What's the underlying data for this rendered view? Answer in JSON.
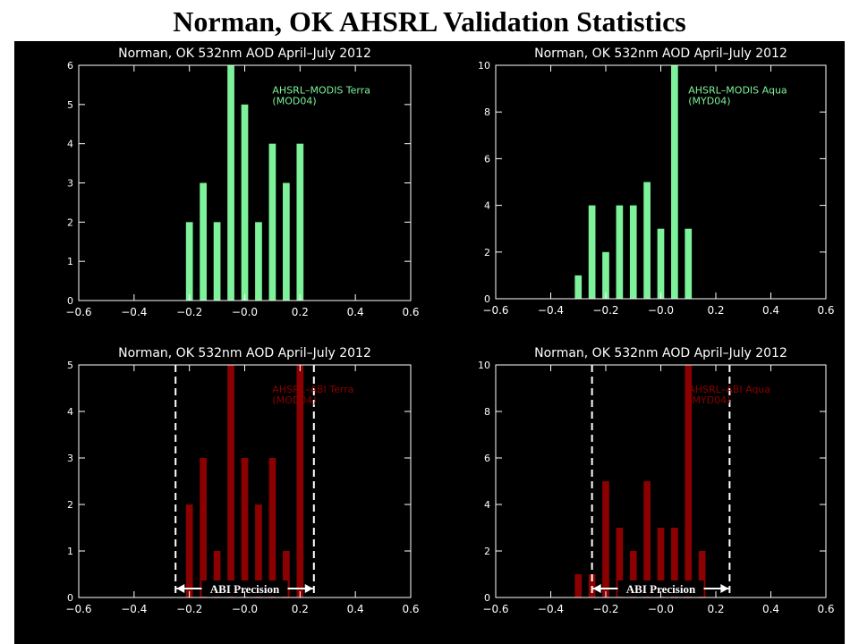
{
  "page": {
    "title": "Norman, OK AHSRL Validation Statistics"
  },
  "colors": {
    "background": "#000000",
    "axes": "#ffffff",
    "modis_bar": "#7df29a",
    "abi_bar": "#8b0000"
  },
  "annotations": {
    "precision_label": "ABI Precision"
  },
  "chart_data": [
    {
      "type": "bar",
      "title": "Norman, OK 532nm AOD April–July 2012",
      "legend": [
        "AHSRL–MODIS Terra",
        "(MOD04)"
      ],
      "legend_position": "top-right",
      "series_color": "#7df29a",
      "xlim": [
        -0.6,
        0.6
      ],
      "ylim": [
        0,
        6
      ],
      "xticks": [
        "−0.6",
        "−0.4",
        "−0.2",
        "−0.0",
        "0.2",
        "0.4",
        "0.6"
      ],
      "yticks": [
        "0",
        "1",
        "2",
        "3",
        "4",
        "5",
        "6"
      ],
      "grid": false,
      "x": [
        -0.2,
        -0.15,
        -0.1,
        -0.05,
        0.0,
        0.05,
        0.1,
        0.15,
        0.2
      ],
      "values": [
        2,
        3,
        2,
        6,
        5,
        2,
        4,
        3,
        4
      ]
    },
    {
      "type": "bar",
      "title": "Norman, OK 532nm AOD April–July 2012",
      "legend": [
        "AHSRL–MODIS Aqua",
        "(MYD04)"
      ],
      "legend_position": "top-right",
      "series_color": "#7df29a",
      "xlim": [
        -0.6,
        0.6
      ],
      "ylim": [
        0,
        10
      ],
      "xticks": [
        "−0.6",
        "−0.4",
        "−0.2",
        "−0.0",
        "0.2",
        "0.4",
        "0.6"
      ],
      "yticks": [
        "0",
        "2",
        "4",
        "6",
        "8",
        "10"
      ],
      "grid": false,
      "x": [
        -0.3,
        -0.25,
        -0.2,
        -0.15,
        -0.1,
        -0.05,
        0.0,
        0.05,
        0.1
      ],
      "values": [
        1,
        4,
        2,
        4,
        4,
        5,
        3,
        10,
        3
      ]
    },
    {
      "type": "bar",
      "title": "Norman, OK 532nm AOD April–July 2012",
      "legend": [
        "AHSRL–ABI Terra",
        "(MOD04)"
      ],
      "legend_position": "top-right",
      "series_color": "#8b0000",
      "xlim": [
        -0.6,
        0.6
      ],
      "ylim": [
        0,
        5
      ],
      "xticks": [
        "−0.6",
        "−0.4",
        "−0.2",
        "−0.0",
        "0.2",
        "0.4",
        "0.6"
      ],
      "yticks": [
        "0",
        "1",
        "2",
        "3",
        "4",
        "5"
      ],
      "grid": false,
      "x": [
        -0.2,
        -0.15,
        -0.1,
        -0.05,
        0.0,
        0.05,
        0.1,
        0.15,
        0.2
      ],
      "values": [
        2,
        3,
        1,
        5,
        3,
        2,
        3,
        1,
        5
      ],
      "precision_bounds": [
        -0.25,
        0.25
      ]
    },
    {
      "type": "bar",
      "title": "Norman, OK 532nm AOD April–July 2012",
      "legend": [
        "AHSRL–ABI Aqua",
        "(MYD04)"
      ],
      "legend_position": "top-right",
      "series_color": "#8b0000",
      "xlim": [
        -0.6,
        0.6
      ],
      "ylim": [
        0,
        10
      ],
      "xticks": [
        "−0.6",
        "−0.4",
        "−0.2",
        "−0.0",
        "0.2",
        "0.4",
        "0.6"
      ],
      "yticks": [
        "0",
        "2",
        "4",
        "6",
        "8",
        "10"
      ],
      "grid": false,
      "x": [
        -0.3,
        -0.25,
        -0.2,
        -0.15,
        -0.1,
        -0.05,
        0.0,
        0.05,
        0.1,
        0.15
      ],
      "values": [
        1,
        1,
        5,
        3,
        2,
        5,
        3,
        3,
        10,
        2
      ],
      "precision_bounds": [
        -0.25,
        0.25
      ]
    }
  ]
}
